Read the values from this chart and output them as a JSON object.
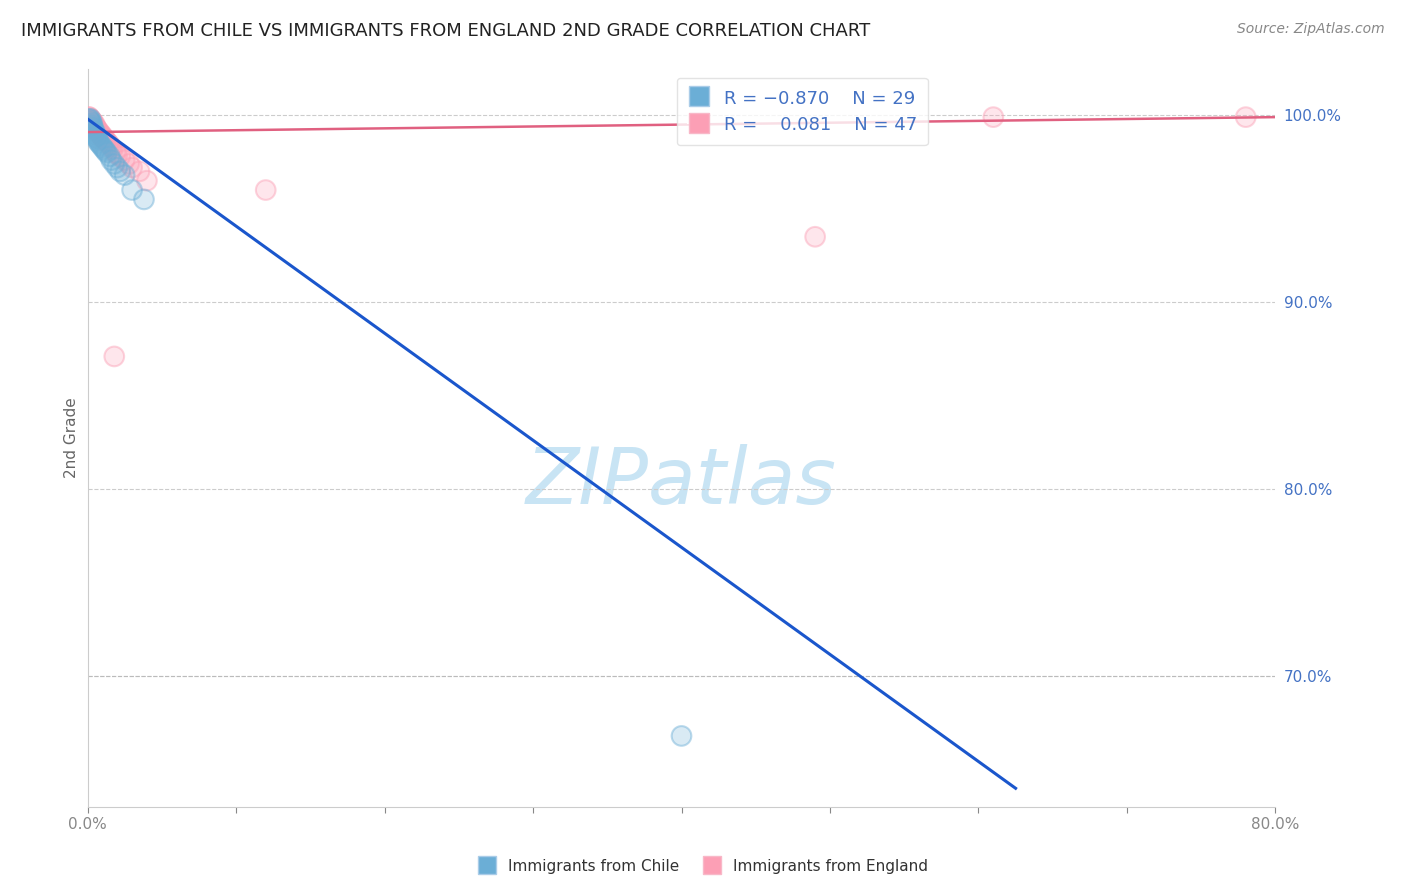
{
  "title": "IMMIGRANTS FROM CHILE VS IMMIGRANTS FROM ENGLAND 2ND GRADE CORRELATION CHART",
  "source": "Source: ZipAtlas.com",
  "ylabel": "2nd Grade",
  "watermark": "ZIPatlas",
  "xmin": 0.0,
  "xmax": 0.8,
  "ymin": 0.63,
  "ymax": 1.025,
  "yticks": [
    0.7,
    0.8,
    0.9,
    1.0
  ],
  "ytick_labels": [
    "70.0%",
    "80.0%",
    "90.0%",
    "100.0%"
  ],
  "xticks": [
    0.0,
    0.1,
    0.2,
    0.3,
    0.4,
    0.5,
    0.6,
    0.7,
    0.8
  ],
  "xtick_labels": [
    "0.0%",
    "",
    "",
    "",
    "",
    "",
    "",
    "",
    "80.0%"
  ],
  "chile_color": "#6baed6",
  "england_color": "#fc9fb5",
  "chile_line_color": "#1a56cc",
  "england_line_color": "#e06080",
  "chile_R": -0.87,
  "chile_N": 29,
  "england_R": 0.081,
  "england_N": 47,
  "chile_label": "Immigrants from Chile",
  "england_label": "Immigrants from England",
  "chile_scatter_x": [
    0.001,
    0.002,
    0.002,
    0.003,
    0.003,
    0.003,
    0.004,
    0.004,
    0.005,
    0.005,
    0.006,
    0.006,
    0.007,
    0.007,
    0.008,
    0.009,
    0.01,
    0.011,
    0.012,
    0.013,
    0.015,
    0.016,
    0.018,
    0.02,
    0.022,
    0.025,
    0.03,
    0.038,
    0.4
  ],
  "chile_scatter_y": [
    0.998,
    0.998,
    0.997,
    0.996,
    0.995,
    0.994,
    0.993,
    0.992,
    0.991,
    0.99,
    0.989,
    0.988,
    0.987,
    0.986,
    0.985,
    0.984,
    0.983,
    0.982,
    0.981,
    0.98,
    0.978,
    0.976,
    0.974,
    0.972,
    0.97,
    0.968,
    0.96,
    0.955,
    0.668
  ],
  "england_scatter_x": [
    0.001,
    0.001,
    0.002,
    0.002,
    0.002,
    0.003,
    0.003,
    0.003,
    0.004,
    0.004,
    0.004,
    0.005,
    0.005,
    0.005,
    0.006,
    0.006,
    0.006,
    0.007,
    0.007,
    0.008,
    0.008,
    0.009,
    0.009,
    0.01,
    0.01,
    0.011,
    0.011,
    0.012,
    0.012,
    0.013,
    0.014,
    0.015,
    0.016,
    0.017,
    0.018,
    0.019,
    0.02,
    0.022,
    0.025,
    0.028,
    0.03,
    0.035,
    0.04,
    0.12,
    0.49,
    0.61,
    0.78
  ],
  "england_scatter_y": [
    0.999,
    0.999,
    0.998,
    0.998,
    0.997,
    0.997,
    0.997,
    0.996,
    0.996,
    0.995,
    0.995,
    0.995,
    0.994,
    0.994,
    0.993,
    0.993,
    0.992,
    0.992,
    0.991,
    0.991,
    0.99,
    0.99,
    0.989,
    0.989,
    0.988,
    0.988,
    0.987,
    0.987,
    0.986,
    0.986,
    0.985,
    0.984,
    0.983,
    0.982,
    0.871,
    0.98,
    0.979,
    0.978,
    0.976,
    0.974,
    0.972,
    0.97,
    0.965,
    0.96,
    0.935,
    0.999,
    0.999
  ],
  "chile_line_x": [
    0.0,
    0.625
  ],
  "chile_line_y": [
    0.998,
    0.64
  ],
  "england_line_x": [
    0.0,
    0.8
  ],
  "england_line_y": [
    0.991,
    0.999
  ],
  "dashed_line_x": [
    0.0,
    0.8
  ],
  "dashed_line_y": [
    0.7,
    0.7
  ],
  "grid_color": "#cccccc",
  "title_color": "#222222",
  "axis_label_color": "#666666",
  "tick_color": "#888888",
  "right_tick_color": "#4472c4",
  "watermark_color": "#c8e4f4",
  "background_color": "#ffffff"
}
